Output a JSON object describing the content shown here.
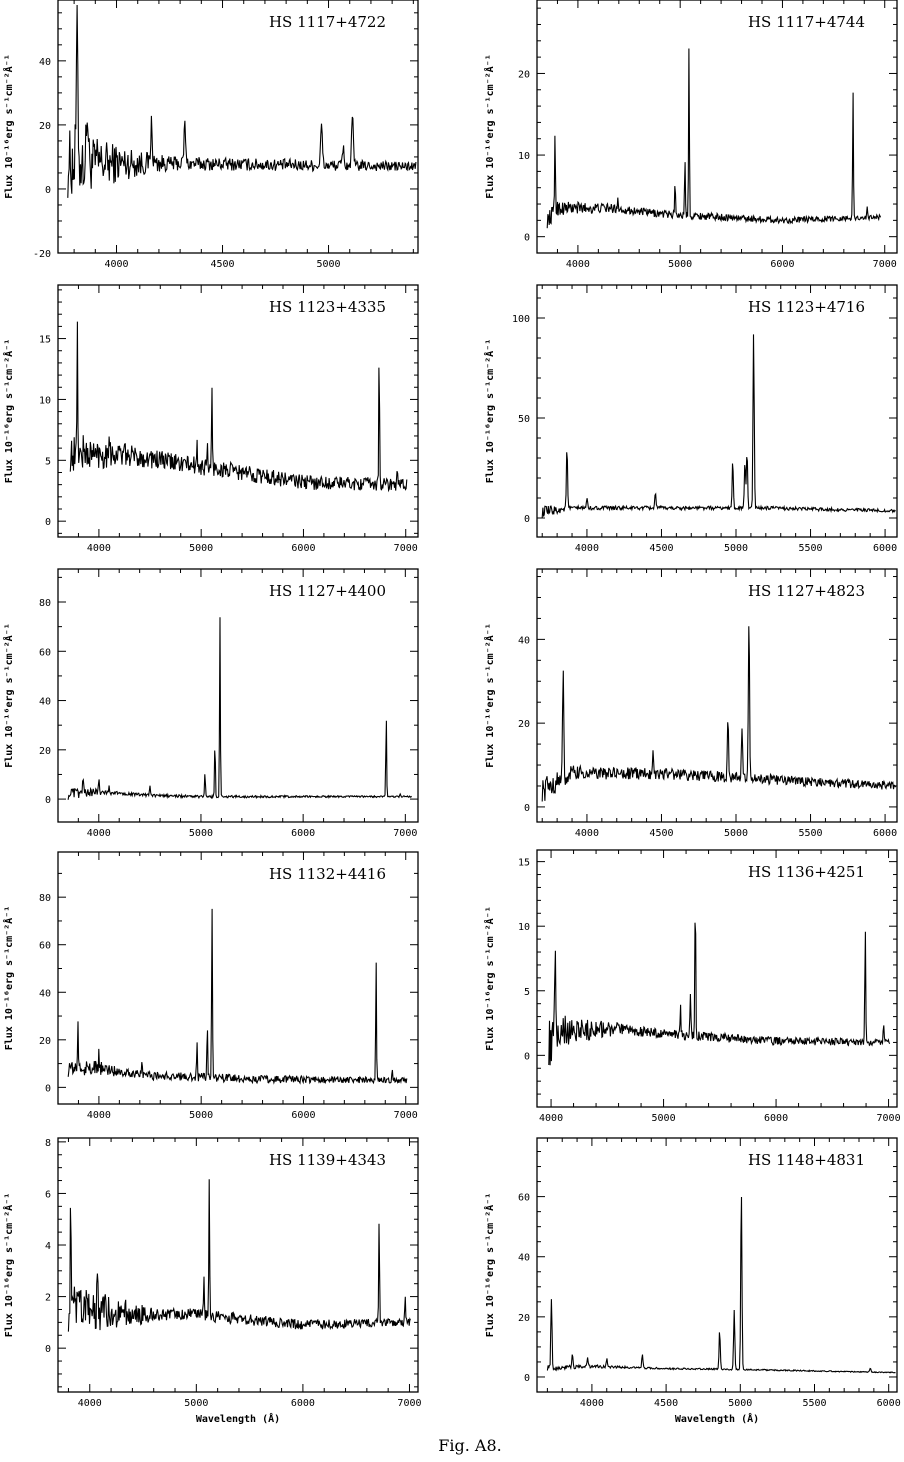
{
  "caption": "Fig. A8.",
  "chart_data": [
    {
      "type": "line",
      "title": "HS  1117+4722",
      "xlabel": "",
      "ylabel": "Flux 10⁻¹⁶erg s⁻¹cm⁻²Å⁻¹",
      "xlim": [
        3724,
        5422
      ],
      "ylim": [
        -20,
        59
      ],
      "xticks": [
        4000,
        4500,
        5000
      ],
      "yticks": [
        -20,
        0,
        20,
        40
      ],
      "x_minor": 100,
      "y_minor": 5,
      "continuum": [
        [
          3770,
          8
        ],
        [
          4200,
          8
        ],
        [
          5400,
          7
        ]
      ],
      "noise": [
        [
          3770,
          11
        ],
        [
          4050,
          5
        ],
        [
          4250,
          2.2
        ],
        [
          5400,
          1.5
        ]
      ],
      "lines": [
        [
          3814,
          48
        ],
        [
          3862,
          25
        ],
        [
          4165,
          20
        ],
        [
          4322,
          20
        ],
        [
          4967,
          20
        ],
        [
          5069,
          13
        ],
        [
          5113,
          23
        ]
      ]
    },
    {
      "type": "line",
      "title": "HS  1117+4744",
      "xlabel": "",
      "ylabel": "Flux 10⁻¹⁶erg s⁻¹cm⁻²Å⁻¹",
      "xlim": [
        3600,
        7120
      ],
      "ylim": [
        -2,
        29
      ],
      "xticks": [
        4000,
        5000,
        6000,
        7000
      ],
      "yticks": [
        0,
        10,
        20
      ],
      "x_minor": 200,
      "y_minor": 2,
      "continuum": [
        [
          3700,
          2
        ],
        [
          3800,
          3.5
        ],
        [
          4300,
          3.5
        ],
        [
          4800,
          2.8
        ],
        [
          6000,
          2
        ],
        [
          6900,
          2.4
        ]
      ],
      "noise": [
        [
          3700,
          1
        ],
        [
          4400,
          0.5
        ],
        [
          7000,
          0.3
        ]
      ],
      "lines": [
        [
          3776,
          13
        ],
        [
          4390,
          5
        ],
        [
          4950,
          7
        ],
        [
          5047,
          9.5
        ],
        [
          5086,
          23
        ],
        [
          6690,
          17.5
        ],
        [
          6830,
          3.5
        ]
      ]
    },
    {
      "type": "line",
      "title": "HS  1123+4335",
      "xlabel": "",
      "ylabel": "Flux 10⁻¹⁶erg s⁻¹cm⁻²Å⁻¹",
      "xlim": [
        3600,
        7120
      ],
      "ylim": [
        -1.3,
        19.4
      ],
      "xticks": [
        4000,
        5000,
        6000,
        7000
      ],
      "yticks": [
        0,
        5,
        10,
        15
      ],
      "x_minor": 200,
      "y_minor": 1,
      "continuum": [
        [
          3720,
          5.5
        ],
        [
          4200,
          5.5
        ],
        [
          5000,
          4.5
        ],
        [
          6000,
          3.2
        ],
        [
          6950,
          3
        ]
      ],
      "noise": [
        [
          3720,
          1.5
        ],
        [
          4400,
          0.8
        ],
        [
          7000,
          0.5
        ]
      ],
      "lines": [
        [
          3790,
          15.3
        ],
        [
          3850,
          6
        ],
        [
          4100,
          8
        ],
        [
          4960,
          6
        ],
        [
          5060,
          6
        ],
        [
          5105,
          10.5
        ],
        [
          6740,
          14
        ],
        [
          6920,
          4.3
        ]
      ]
    },
    {
      "type": "line",
      "title": "HS  1123+4716",
      "xlabel": "",
      "ylabel": "Flux 10⁻¹⁶erg s⁻¹cm⁻²Å⁻¹",
      "xlim": [
        3665,
        6080
      ],
      "ylim": [
        -9.5,
        116.5
      ],
      "xticks": [
        4000,
        4500,
        5000,
        5500,
        6000
      ],
      "yticks": [
        0,
        50,
        100
      ],
      "x_minor": 100,
      "y_minor": 10,
      "continuum": [
        [
          3700,
          3
        ],
        [
          3900,
          5
        ],
        [
          5200,
          5
        ],
        [
          6100,
          3.5
        ]
      ],
      "noise": [
        [
          3700,
          3
        ],
        [
          3900,
          1
        ],
        [
          6100,
          0.8
        ]
      ],
      "lines": [
        [
          3866,
          35
        ],
        [
          4000,
          10
        ],
        [
          4459,
          13
        ],
        [
          4978,
          29
        ],
        [
          5060,
          28
        ],
        [
          5074,
          33
        ],
        [
          5118,
          93
        ]
      ]
    },
    {
      "type": "line",
      "title": "HS  1127+4400",
      "xlabel": "",
      "ylabel": "Flux 10⁻¹⁶erg s⁻¹cm⁻²Å⁻¹",
      "xlim": [
        3601,
        7124
      ],
      "ylim": [
        -9.3,
        93.4
      ],
      "xticks": [
        4000,
        5000,
        6000,
        7000
      ],
      "yticks": [
        0,
        20,
        40,
        60,
        80
      ],
      "x_minor": 200,
      "y_minor": 10,
      "continuum": [
        [
          3700,
          2
        ],
        [
          4000,
          3
        ],
        [
          4500,
          1.5
        ],
        [
          5000,
          1
        ],
        [
          7000,
          1
        ]
      ],
      "noise": [
        [
          3700,
          2.5
        ],
        [
          4200,
          0.6
        ],
        [
          7000,
          0.3
        ]
      ],
      "lines": [
        [
          3846,
          10
        ],
        [
          4003,
          9
        ],
        [
          4100,
          5
        ],
        [
          4500,
          6
        ],
        [
          5039,
          11
        ],
        [
          5137,
          24
        ],
        [
          5186,
          74
        ],
        [
          6813,
          34
        ],
        [
          6950,
          2
        ]
      ]
    },
    {
      "type": "line",
      "title": "HS  1127+4823",
      "xlabel": "",
      "ylabel": "Flux 10⁻¹⁶erg s⁻¹cm⁻²Å⁻¹",
      "xlim": [
        3665,
        6080
      ],
      "ylim": [
        -3.6,
        56.8
      ],
      "xticks": [
        4000,
        4500,
        5000,
        5500,
        6000
      ],
      "yticks": [
        0,
        20,
        40
      ],
      "x_minor": 100,
      "y_minor": 5,
      "continuum": [
        [
          3700,
          4
        ],
        [
          3900,
          8
        ],
        [
          4500,
          8
        ],
        [
          5000,
          7
        ],
        [
          6050,
          5
        ]
      ],
      "noise": [
        [
          3700,
          3
        ],
        [
          4000,
          1.5
        ],
        [
          6100,
          1
        ]
      ],
      "lines": [
        [
          3840,
          32
        ],
        [
          4443,
          13
        ],
        [
          4946,
          22
        ],
        [
          5040,
          19
        ],
        [
          5087,
          46
        ]
      ]
    },
    {
      "type": "line",
      "title": "HS  1132+4416",
      "xlabel": "",
      "ylabel": "Flux 10⁻¹⁶erg s⁻¹cm⁻²Å⁻¹",
      "xlim": [
        3600,
        7120
      ],
      "ylim": [
        -7,
        99
      ],
      "xticks": [
        4000,
        5000,
        6000,
        7000
      ],
      "yticks": [
        0,
        20,
        40,
        60,
        80
      ],
      "x_minor": 200,
      "y_minor": 10,
      "continuum": [
        [
          3700,
          8
        ],
        [
          4000,
          8
        ],
        [
          4500,
          5
        ],
        [
          5500,
          3.5
        ],
        [
          6950,
          3
        ]
      ],
      "noise": [
        [
          3700,
          4
        ],
        [
          4300,
          2
        ],
        [
          7000,
          1.2
        ]
      ],
      "lines": [
        [
          3795,
          26
        ],
        [
          4000,
          14
        ],
        [
          4420,
          10
        ],
        [
          4960,
          19
        ],
        [
          5060,
          28
        ],
        [
          5106,
          77
        ],
        [
          6710,
          53
        ],
        [
          6870,
          8
        ]
      ]
    },
    {
      "type": "line",
      "title": "HS  1136+4251",
      "xlabel": "",
      "ylabel": "Flux 10⁻¹⁶erg s⁻¹cm⁻²Å⁻¹",
      "xlim": [
        3875,
        7075
      ],
      "ylim": [
        -4,
        15.9
      ],
      "xticks": [
        4000,
        5000,
        6000,
        7000
      ],
      "yticks": [
        0,
        5,
        10,
        15
      ],
      "x_minor": 200,
      "y_minor": 1,
      "continuum": [
        [
          3980,
          1
        ],
        [
          4050,
          2
        ],
        [
          4600,
          2
        ],
        [
          5100,
          1.6
        ],
        [
          6000,
          1.1
        ],
        [
          6950,
          1
        ]
      ],
      "noise": [
        [
          3980,
          2
        ],
        [
          4200,
          1
        ],
        [
          4700,
          0.4
        ],
        [
          7000,
          0.25
        ]
      ],
      "lines": [
        [
          4038,
          9.8
        ],
        [
          5150,
          3.7
        ],
        [
          5238,
          5
        ],
        [
          5282,
          12.5
        ],
        [
          6793,
          10
        ],
        [
          6956,
          2.4
        ]
      ]
    },
    {
      "type": "line",
      "title": "HS  1139+4343",
      "xlabel": "Wavelength (Å)",
      "ylabel": "Flux 10⁻¹⁶erg s⁻¹cm⁻²Å⁻¹",
      "xlim": [
        3702,
        7080
      ],
      "ylim": [
        -1.7,
        8.15
      ],
      "xticks": [
        4000,
        5000,
        6000,
        7000
      ],
      "yticks": [
        0,
        2,
        4,
        6,
        8
      ],
      "x_minor": 200,
      "y_minor": 0.5,
      "continuum": [
        [
          3800,
          1.5
        ],
        [
          4500,
          1.3
        ],
        [
          5000,
          1.3
        ],
        [
          6000,
          0.9
        ],
        [
          6950,
          1
        ]
      ],
      "noise": [
        [
          3800,
          1
        ],
        [
          4400,
          0.5
        ],
        [
          4600,
          0.25
        ],
        [
          7000,
          0.15
        ]
      ],
      "lines": [
        [
          3821,
          5.6
        ],
        [
          4072,
          3.3
        ],
        [
          5071,
          2.7
        ],
        [
          5121,
          6.4
        ],
        [
          6715,
          5.2
        ],
        [
          6960,
          1.9
        ]
      ]
    },
    {
      "type": "line",
      "title": "HS  1148+4831",
      "xlabel": "Wavelength (Å)",
      "ylabel": "Flux 10⁻¹⁶erg s⁻¹cm⁻²Å⁻¹",
      "xlim": [
        3630,
        6056
      ],
      "ylim": [
        -5,
        79.5
      ],
      "xticks": [
        4000,
        4500,
        5000,
        5500,
        6000
      ],
      "yticks": [
        0,
        20,
        40,
        60
      ],
      "x_minor": 100,
      "y_minor": 5,
      "continuum": [
        [
          3700,
          3
        ],
        [
          4000,
          3.5
        ],
        [
          4500,
          2.8
        ],
        [
          5000,
          2.5
        ],
        [
          6000,
          1.5
        ]
      ],
      "noise": [
        [
          3700,
          1
        ],
        [
          3900,
          0.6
        ],
        [
          4300,
          0.3
        ],
        [
          6000,
          0.15
        ]
      ],
      "lines": [
        [
          3727,
          25.5
        ],
        [
          3869,
          8
        ],
        [
          3970,
          6
        ],
        [
          4101,
          6
        ],
        [
          4340,
          7.5
        ],
        [
          4861,
          15.5
        ],
        [
          4959,
          22.5
        ],
        [
          5007,
          63
        ],
        [
          5876,
          3
        ]
      ]
    }
  ]
}
